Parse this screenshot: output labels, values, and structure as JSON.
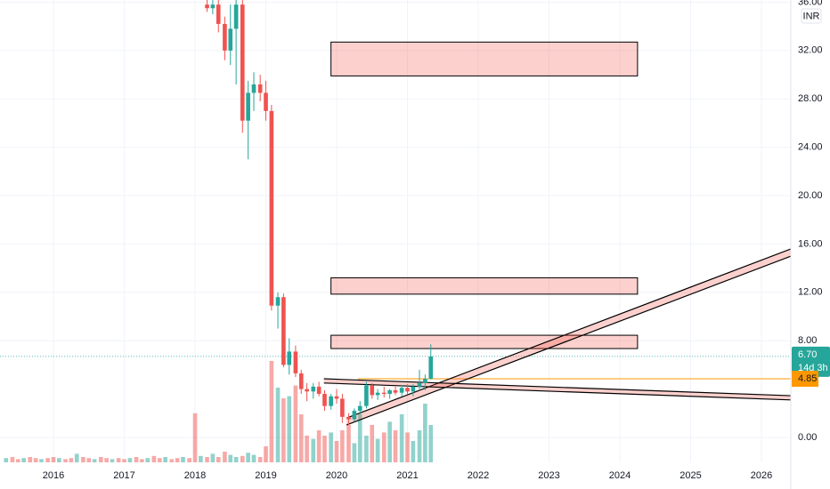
{
  "chart_data": {
    "type": "candlestick",
    "currency": "INR",
    "x": [
      2018.17,
      2018.25,
      2018.33,
      2018.42,
      2018.5,
      2018.58,
      2018.67,
      2018.75,
      2018.83,
      2018.92,
      2019.0,
      2019.08,
      2019.17,
      2019.25,
      2019.33,
      2019.42,
      2019.5,
      2019.58,
      2019.67,
      2019.75,
      2019.83,
      2019.92,
      2020.0,
      2020.08,
      2020.17,
      2020.25,
      2020.33,
      2020.42,
      2020.5,
      2020.58,
      2020.67,
      2020.75,
      2020.83,
      2020.92,
      2021.0,
      2021.08,
      2021.17,
      2021.25,
      2021.33
    ],
    "open": [
      35.8,
      35.5,
      35.8,
      34.2,
      32.0,
      33.8,
      35.8,
      26.2,
      28.5,
      29.2,
      28.5,
      27.0,
      10.9,
      11.6,
      6.0,
      7.1,
      5.3,
      4.0,
      3.8,
      4.2,
      3.6,
      2.6,
      3.4,
      3.2,
      1.7,
      1.5,
      2.2,
      2.6,
      4.3,
      3.5,
      3.7,
      3.6,
      3.9,
      3.7,
      4.1,
      3.8,
      4.2,
      4.5,
      4.85
    ],
    "high": [
      36.2,
      36.2,
      36.2,
      34.8,
      35.8,
      36.2,
      36.2,
      29.5,
      30.2,
      30.0,
      29.5,
      27.5,
      12.0,
      11.9,
      8.2,
      7.6,
      5.6,
      4.5,
      4.5,
      4.6,
      3.9,
      3.6,
      4.0,
      3.6,
      2.0,
      2.4,
      3.0,
      4.6,
      4.5,
      4.0,
      4.2,
      4.0,
      4.2,
      4.3,
      4.4,
      4.4,
      5.6,
      5.2,
      7.7
    ],
    "low": [
      35.2,
      35.0,
      33.5,
      31.2,
      30.8,
      29.2,
      25.2,
      23.0,
      27.0,
      27.8,
      26.2,
      10.5,
      9.0,
      5.8,
      5.2,
      5.0,
      3.6,
      3.0,
      3.2,
      3.4,
      2.2,
      2.3,
      2.8,
      1.2,
      1.0,
      1.3,
      1.9,
      2.4,
      3.2,
      3.1,
      3.3,
      3.2,
      3.5,
      3.4,
      3.6,
      3.4,
      3.9,
      3.9,
      4.8
    ],
    "close": [
      35.5,
      35.8,
      34.2,
      32.0,
      33.8,
      35.8,
      26.2,
      28.5,
      29.2,
      28.5,
      27.0,
      10.9,
      11.6,
      6.0,
      7.1,
      5.3,
      4.0,
      3.8,
      4.2,
      3.6,
      2.6,
      3.4,
      3.2,
      1.7,
      1.5,
      2.2,
      2.6,
      4.3,
      3.5,
      3.7,
      3.6,
      3.9,
      3.7,
      4.1,
      3.8,
      4.2,
      4.5,
      4.85,
      6.7
    ],
    "up_color": "#26a69a",
    "down_color": "#ef5350",
    "volume": {
      "x": [
        2015.33,
        2015.42,
        2015.5,
        2015.58,
        2015.67,
        2015.75,
        2015.83,
        2015.92,
        2016.0,
        2016.08,
        2016.17,
        2016.25,
        2016.33,
        2016.42,
        2016.5,
        2016.58,
        2016.67,
        2016.75,
        2016.83,
        2016.92,
        2017.0,
        2017.08,
        2017.17,
        2017.25,
        2017.33,
        2017.42,
        2017.5,
        2017.58,
        2017.67,
        2017.75,
        2017.83,
        2017.92,
        2018.0,
        2018.08,
        2018.17,
        2018.25,
        2018.33,
        2018.42,
        2018.5,
        2018.58,
        2018.67,
        2018.75,
        2018.83,
        2018.92,
        2019.0,
        2019.08,
        2019.17,
        2019.25,
        2019.33,
        2019.42,
        2019.5,
        2019.58,
        2019.67,
        2019.75,
        2019.83,
        2019.92,
        2020.0,
        2020.08,
        2020.17,
        2020.25,
        2020.33,
        2020.42,
        2020.5,
        2020.58,
        2020.67,
        2020.75,
        2020.83,
        2020.92,
        2021.0,
        2021.08,
        2021.17,
        2021.25,
        2021.33
      ],
      "values": [
        4,
        5,
        3,
        4,
        5,
        4,
        3,
        4,
        5,
        4,
        3,
        4,
        8,
        5,
        4,
        3,
        5,
        4,
        3,
        4,
        3,
        4,
        5,
        3,
        4,
        6,
        4,
        5,
        3,
        4,
        5,
        4,
        46,
        6,
        5,
        8,
        5,
        10,
        7,
        5,
        6,
        9,
        7,
        5,
        15,
        95,
        70,
        60,
        62,
        72,
        45,
        25,
        22,
        30,
        25,
        28,
        20,
        30,
        35,
        18,
        45,
        25,
        35,
        22,
        28,
        38,
        30,
        45,
        28,
        20,
        30,
        55,
        35
      ],
      "ylim": [
        0,
        100
      ]
    },
    "zones": [
      {
        "x": [
          2019.92,
          2024.25
        ],
        "y": [
          29.9,
          32.7
        ]
      },
      {
        "x": [
          2019.92,
          2024.25
        ],
        "y": [
          11.85,
          13.2
        ]
      },
      {
        "x": [
          2019.92,
          2024.25
        ],
        "y": [
          7.35,
          8.45
        ]
      }
    ],
    "channels": [
      {
        "x": [
          2020.14,
          2026.42
        ],
        "upper": [
          1.6,
          15.6
        ],
        "lower": [
          1.03,
          15.0
        ]
      },
      {
        "x": [
          2019.82,
          2026.42
        ],
        "upper": [
          4.85,
          3.45
        ],
        "lower": [
          4.5,
          3.1
        ]
      }
    ],
    "alert_line": {
      "x": [
        2020.3,
        2026.42
      ],
      "price": {
        "value": 4.85,
        "label": "4.85"
      },
      "color": "#ff9800"
    },
    "last_price": {
      "value": 6.7,
      "label": "6.70"
    },
    "countdown": "14d 3h",
    "xlim": [
      2015.245,
      2026.415
    ],
    "ylim": [
      -2.06,
      36.18
    ],
    "xticks": [
      2016,
      2017,
      2018,
      2019,
      2020,
      2021,
      2022,
      2023,
      2024,
      2025,
      2026
    ],
    "yticks": [
      {
        "value": 0,
        "label": "0.00"
      },
      {
        "value": 8,
        "label": "8.00"
      },
      {
        "value": 12,
        "label": "12.00"
      },
      {
        "value": 16,
        "label": "16.00"
      },
      {
        "value": 20,
        "label": "20.00"
      },
      {
        "value": 24,
        "label": "24.00"
      },
      {
        "value": 28,
        "label": "28.00"
      },
      {
        "value": 32,
        "label": "32.00"
      },
      {
        "value": 36,
        "label": "36.00"
      }
    ],
    "grid": true
  }
}
